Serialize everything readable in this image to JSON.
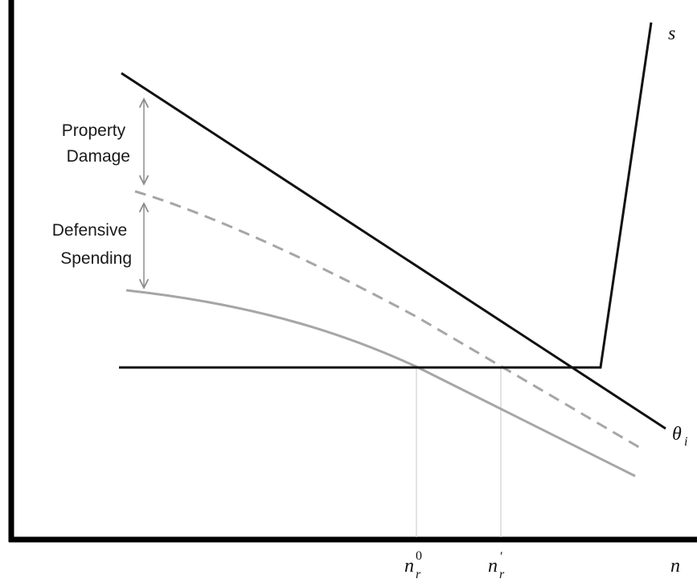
{
  "labels": {
    "property_damage": [
      "Property",
      "Damage"
    ],
    "defensive_spending": [
      "Defensive",
      "Spending"
    ],
    "supply_curve": "s",
    "demand_curve": {
      "base": "θ",
      "sub": "i"
    },
    "x_axis": "n",
    "n_r_zero": {
      "base": "n",
      "sub": "r",
      "sup": "0"
    },
    "n_r_prime": {
      "base": "n",
      "sub": "r",
      "sup": "′"
    }
  },
  "colors": {
    "axis": "#000000",
    "black_curves": "#111111",
    "gray_curves": "#a6a6a6",
    "arrows": "#8c8c8c",
    "dropdown_lines": "#d0d0d0"
  }
}
